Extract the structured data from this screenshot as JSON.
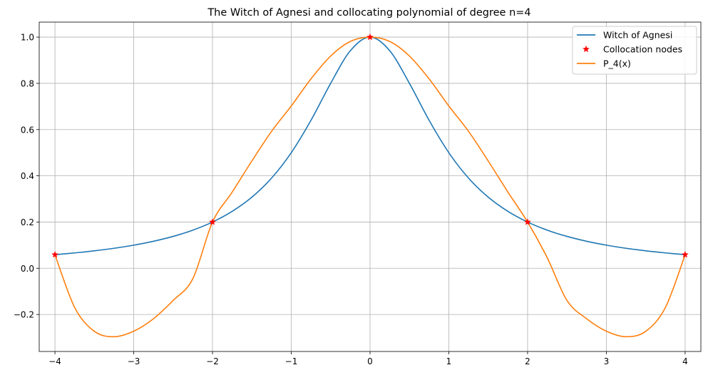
{
  "chart_data": {
    "type": "line",
    "title": "The Witch of Agnesi and collocating polynomial of degree n=4",
    "xlabel": "",
    "ylabel": "",
    "xlim": [
      -4.2,
      4.2
    ],
    "ylim": [
      -0.36,
      1.065
    ],
    "grid": true,
    "legend_position": "top-right",
    "xticks": [
      -4,
      -3,
      -2,
      -1,
      0,
      1,
      2,
      3,
      4
    ],
    "xtick_labels": [
      "−4",
      "−3",
      "−2",
      "−1",
      "0",
      "1",
      "2",
      "3",
      "4"
    ],
    "yticks": [
      -0.2,
      0.0,
      0.2,
      0.4,
      0.6,
      0.8,
      1.0
    ],
    "ytick_labels": [
      "−0.2",
      "0.0",
      "0.2",
      "0.4",
      "0.6",
      "0.8",
      "1.0"
    ],
    "series": [
      {
        "name": "Witch of Agnesi",
        "kind": "line",
        "color": "#1f77b4",
        "x": [
          -4.0,
          -3.75,
          -3.5,
          -3.25,
          -3.0,
          -2.75,
          -2.5,
          -2.25,
          -2.0,
          -1.75,
          -1.5,
          -1.25,
          -1.0,
          -0.75,
          -0.5,
          -0.25,
          0.0,
          0.25,
          0.5,
          0.75,
          1.0,
          1.25,
          1.5,
          1.75,
          2.0,
          2.25,
          2.5,
          2.75,
          3.0,
          3.25,
          3.5,
          3.75,
          4.0
        ],
        "y": [
          0.0588,
          0.0664,
          0.0755,
          0.0865,
          0.1,
          0.1168,
          0.1379,
          0.1649,
          0.2,
          0.2462,
          0.3077,
          0.3902,
          0.5,
          0.64,
          0.8,
          0.9412,
          1.0,
          0.9412,
          0.8,
          0.64,
          0.5,
          0.3902,
          0.3077,
          0.2462,
          0.2,
          0.1649,
          0.1379,
          0.1168,
          0.1,
          0.0865,
          0.0755,
          0.0664,
          0.0588
        ]
      },
      {
        "name": "Collocation nodes",
        "kind": "markers",
        "color": "#ff0000",
        "x": [
          -4,
          -2,
          0,
          2,
          4
        ],
        "y": [
          0.0588,
          0.2,
          1.0,
          0.2,
          0.0588
        ]
      },
      {
        "name": "P_4(x)",
        "kind": "line",
        "color": "#ff7f0e",
        "x": [
          -4.0,
          -3.75,
          -3.5,
          -3.25,
          -3.0,
          -2.75,
          -2.5,
          -2.25,
          -2.0,
          -1.75,
          -1.5,
          -1.25,
          -1.0,
          -0.75,
          -0.5,
          -0.25,
          0.0,
          0.25,
          0.5,
          0.75,
          1.0,
          1.25,
          1.5,
          1.75,
          2.0,
          2.25,
          2.5,
          2.75,
          3.0,
          3.25,
          3.5,
          3.75,
          4.0
        ],
        "y": [
          0.0588,
          -0.1696,
          -0.2727,
          -0.2963,
          -0.2722,
          -0.2184,
          -0.1393,
          -0.0451,
          0.2,
          0.3297,
          0.4643,
          0.5924,
          0.7022,
          0.8193,
          0.9183,
          0.9814,
          1.0,
          0.9814,
          0.9183,
          0.8193,
          0.7022,
          0.5924,
          0.4643,
          0.3297,
          0.2,
          0.0451,
          -0.1393,
          -0.2184,
          -0.2722,
          -0.2963,
          -0.2727,
          -0.1696,
          0.0588
        ]
      }
    ]
  }
}
